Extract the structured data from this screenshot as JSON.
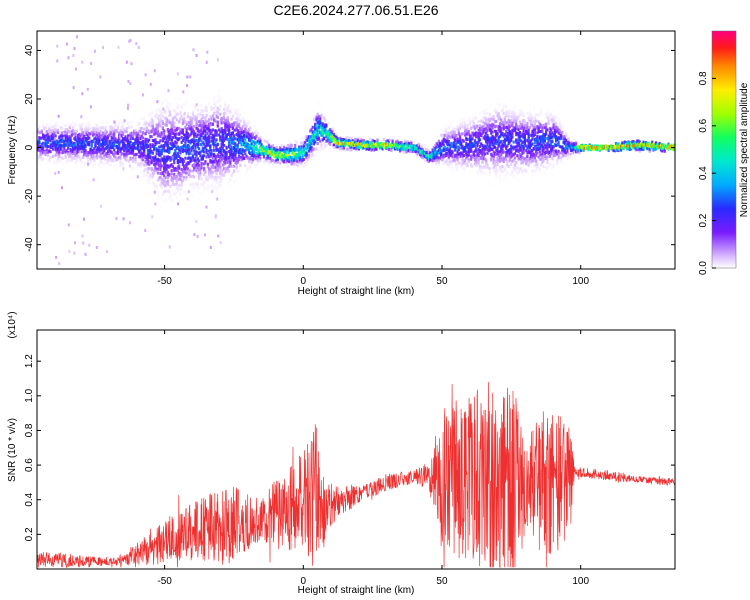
{
  "title": "C2E6.2024.277.06.51.E26",
  "chart_data": [
    {
      "type": "heatmap",
      "xlabel": "Height of straight line (km)",
      "ylabel": "Frequency (Hz)",
      "xlim": [
        -96,
        134
      ],
      "ylim": [
        -50,
        48
      ],
      "xticks": [
        -50,
        0,
        50,
        100
      ],
      "yticks": [
        -40,
        -20,
        0,
        20,
        40
      ],
      "grid": false,
      "colorbar": {
        "label": "Normalized spectral amplitude",
        "range": [
          0,
          1
        ],
        "ticks": [
          "0.0",
          "0.2",
          "0.4",
          "0.6",
          "0.8"
        ]
      },
      "ridge": {
        "x": [
          -96,
          -60,
          -50,
          -40,
          -30,
          -20,
          -15,
          -10,
          -5,
          0,
          5,
          8,
          12,
          20,
          30,
          40,
          45,
          50,
          60,
          70,
          80,
          90,
          96,
          100,
          110,
          120,
          134
        ],
        "center": [
          2,
          1,
          -2,
          0,
          2,
          1,
          -1,
          -3,
          -3,
          -2,
          8,
          6,
          2,
          1,
          1,
          0,
          -4,
          0,
          1,
          3,
          2,
          3,
          0,
          0,
          0,
          1,
          0
        ],
        "spread": [
          8,
          10,
          22,
          18,
          20,
          10,
          5,
          4,
          5,
          6,
          10,
          6,
          3,
          2,
          2,
          3,
          3,
          8,
          12,
          16,
          14,
          12,
          4,
          1,
          1,
          2,
          1
        ],
        "peak_amplitude": [
          0.35,
          0.3,
          0.3,
          0.35,
          0.3,
          0.45,
          0.75,
          0.85,
          0.8,
          0.55,
          0.5,
          0.6,
          0.95,
          0.95,
          0.95,
          0.6,
          0.55,
          0.35,
          0.3,
          0.3,
          0.3,
          0.35,
          0.4,
          0.95,
          0.95,
          0.95,
          0.95
        ]
      }
    },
    {
      "type": "line",
      "xlabel": "Height of straight line (km)",
      "ylabel": "SNR (10 * v/v)",
      "scale_label": "(x10⁴)",
      "xlim": [
        -96,
        134
      ],
      "ylim": [
        0,
        1.38
      ],
      "xticks": [
        -50,
        0,
        50,
        100
      ],
      "yticks": [
        "0.2",
        "0.4",
        "0.6",
        "0.8",
        "1.0",
        "1.2"
      ],
      "color": "#ef3030",
      "envelope": {
        "x": [
          -96,
          -85,
          -70,
          -65,
          -55,
          -45,
          -35,
          -25,
          -15,
          -10,
          -5,
          0,
          5,
          8,
          12,
          20,
          30,
          40,
          45,
          50,
          60,
          70,
          78,
          80,
          85,
          90,
          96,
          98,
          110,
          120,
          134
        ],
        "baseline": [
          0.05,
          0.05,
          0.04,
          0.05,
          0.12,
          0.2,
          0.24,
          0.27,
          0.28,
          0.32,
          0.35,
          0.4,
          0.42,
          0.36,
          0.38,
          0.43,
          0.5,
          0.53,
          0.54,
          0.54,
          0.52,
          0.52,
          0.5,
          0.48,
          0.5,
          0.5,
          0.52,
          0.56,
          0.54,
          0.52,
          0.5
        ],
        "amplitude": [
          0.05,
          0.04,
          0.02,
          0.03,
          0.1,
          0.15,
          0.2,
          0.22,
          0.12,
          0.2,
          0.25,
          0.3,
          0.45,
          0.2,
          0.1,
          0.05,
          0.05,
          0.04,
          0.08,
          0.4,
          0.5,
          0.6,
          0.5,
          0.25,
          0.4,
          0.45,
          0.35,
          0.03,
          0.03,
          0.02,
          0.02
        ]
      }
    }
  ]
}
